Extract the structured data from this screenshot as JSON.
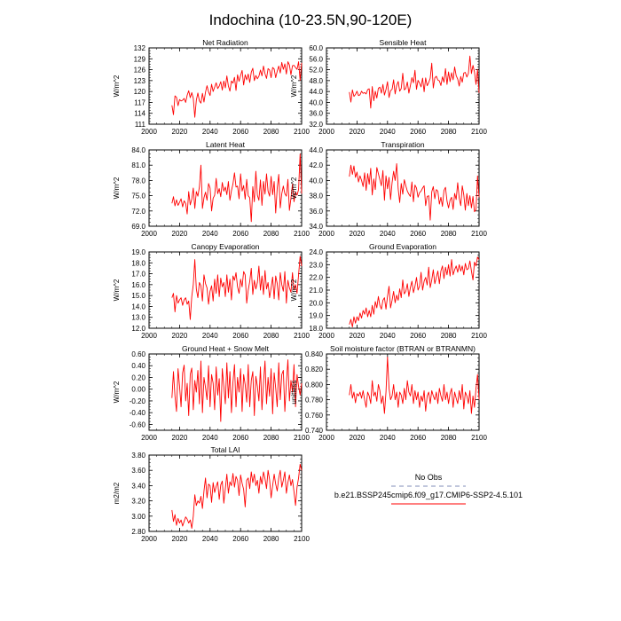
{
  "figure_title": "Indochina (10-23.5N,90-120E)",
  "legend": {
    "obs_label": "No Obs",
    "obs_color": "#9aa4c8",
    "model_label": "b.e21.BSSP245cmip6.f09_g17.CMIP6-SSP2-4.5.101",
    "model_color": "#ff0000"
  },
  "chart_data": [
    {
      "type": "line",
      "title": "Net Radiation",
      "ylabel": "W/m^2",
      "xlim": [
        2000,
        2100
      ],
      "ylim": [
        111,
        132
      ],
      "yticks": [
        "111",
        "114",
        "117",
        "120",
        "123",
        "126",
        "129",
        "132"
      ],
      "xticks": [
        "2000",
        "2020",
        "2040",
        "2060",
        "2080",
        "2100"
      ],
      "series": [
        {
          "name": "b.e21.BSSP245cmip6.f09_g17.CMIP6-SSP2-4.5.101",
          "start_year": 2015,
          "values": [
            116.2,
            113.6,
            118.8,
            118.4,
            116.1,
            117.8,
            117.4,
            117.6,
            118.1,
            117.0,
            119.0,
            120.2,
            118.3,
            119.7,
            118.1,
            112.9,
            117.6,
            119.6,
            117.4,
            116.8,
            119.5,
            117.1,
            119.8,
            121.6,
            119.9,
            118.9,
            122.0,
            120.0,
            121.2,
            122.4,
            120.8,
            121.5,
            122.7,
            120.4,
            122.9,
            121.0,
            124.3,
            121.5,
            120.1,
            122.9,
            122.3,
            123.9,
            120.3,
            124.6,
            122.8,
            124.4,
            125.8,
            121.8,
            124.6,
            123.2,
            124.8,
            122.5,
            125.3,
            126.4,
            123.0,
            124.4,
            123.5,
            124.2,
            125.9,
            124.3,
            127.0,
            124.9,
            123.6,
            126.3,
            125.9,
            123.8,
            126.6,
            126.2,
            123.8,
            125.6,
            127.0,
            125.1,
            128.0,
            126.1,
            127.6,
            124.8,
            128.2,
            127.3,
            124.6,
            127.1,
            127.2,
            126.6,
            126.1,
            128.2,
            123.1,
            127.9
          ]
        }
      ]
    },
    {
      "type": "line",
      "title": "Sensible Heat",
      "ylabel": "W/m^2",
      "xlim": [
        2000,
        2100
      ],
      "ylim": [
        32,
        60
      ],
      "yticks": [
        "32.0",
        "36.0",
        "40.0",
        "44.0",
        "48.0",
        "52.0",
        "56.0",
        "60.0"
      ],
      "xticks": [
        "2000",
        "2020",
        "2040",
        "2060",
        "2080",
        "2100"
      ],
      "series": [
        {
          "name": "b.e21.BSSP245cmip6.f09_g17.CMIP6-SSP2-4.5.101",
          "start_year": 2015,
          "values": [
            43.8,
            40.1,
            44.6,
            42.2,
            42.9,
            44.1,
            42.5,
            42.8,
            44.1,
            43.3,
            43.6,
            43.1,
            44.7,
            45.0,
            37.9,
            45.8,
            40.6,
            44.1,
            41.6,
            45.2,
            45.6,
            43.4,
            46.6,
            42.7,
            44.7,
            47.6,
            41.8,
            44.3,
            44.8,
            48.3,
            43.1,
            46.2,
            47.7,
            44.1,
            45.1,
            50.7,
            44.6,
            45.1,
            47.5,
            43.4,
            46.2,
            49.1,
            47.2,
            51.8,
            44.8,
            48.1,
            47.1,
            45.7,
            48.9,
            43.9,
            49.0,
            46.1,
            47.3,
            48.9,
            54.4,
            45.3,
            49.0,
            49.6,
            48.2,
            47.9,
            46.2,
            49.4,
            47.4,
            52.4,
            46.6,
            51.2,
            47.6,
            50.9,
            48.3,
            53.0,
            49.8,
            48.6,
            46.0,
            49.5,
            47.4,
            50.8,
            51.0,
            49.3,
            50.6,
            57.0,
            50.6,
            53.6,
            51.2,
            46.6,
            52.1,
            43.5
          ]
        }
      ]
    },
    {
      "type": "line",
      "title": "Latent Heat",
      "ylabel": "W/m^2",
      "xlim": [
        2000,
        2100
      ],
      "ylim": [
        69,
        84
      ],
      "yticks": [
        "69.0",
        "72.0",
        "75.0",
        "78.0",
        "81.0",
        "84.0"
      ],
      "xticks": [
        "2000",
        "2020",
        "2040",
        "2060",
        "2080",
        "2100"
      ],
      "series": [
        {
          "name": "b.e21.BSSP245cmip6.f09_g17.CMIP6-SSP2-4.5.101",
          "start_year": 2015,
          "values": [
            73.5,
            74.8,
            73.0,
            74.2,
            73.1,
            73.7,
            74.4,
            72.8,
            74.0,
            73.5,
            71.4,
            75.8,
            73.2,
            74.3,
            76.5,
            72.5,
            75.8,
            74.9,
            76.7,
            81.0,
            72.5,
            74.6,
            75.7,
            74.1,
            77.4,
            76.5,
            72.0,
            74.5,
            75.1,
            78.4,
            75.4,
            76.4,
            74.8,
            77.6,
            75.9,
            76.7,
            75.2,
            77.8,
            74.1,
            76.0,
            77.3,
            79.5,
            76.7,
            76.9,
            74.4,
            79.3,
            75.9,
            77.0,
            74.3,
            78.2,
            75.0,
            74.6,
            69.9,
            76.8,
            73.8,
            79.8,
            75.1,
            74.1,
            78.1,
            73.1,
            77.8,
            75.3,
            79.3,
            75.9,
            74.9,
            78.8,
            75.2,
            77.8,
            71.6,
            76.5,
            79.2,
            72.6,
            75.4,
            76.9,
            75.4,
            74.9,
            78.2,
            72.1,
            74.5,
            77.3,
            73.8,
            75.7,
            75.1,
            76.2,
            83.2,
            75.4
          ]
        }
      ]
    },
    {
      "type": "line",
      "title": "Transpiration",
      "ylabel": "W/m^2",
      "xlim": [
        2000,
        2100
      ],
      "ylim": [
        34,
        44
      ],
      "yticks": [
        "34.0",
        "36.0",
        "38.0",
        "40.0",
        "42.0",
        "44.0"
      ],
      "xticks": [
        "2000",
        "2020",
        "2040",
        "2060",
        "2080",
        "2100"
      ],
      "series": [
        {
          "name": "b.e21.BSSP245cmip6.f09_g17.CMIP6-SSP2-4.5.101",
          "start_year": 2015,
          "values": [
            40.5,
            42.0,
            40.8,
            41.9,
            40.4,
            41.1,
            39.8,
            40.6,
            40.0,
            39.2,
            41.0,
            38.7,
            40.9,
            39.5,
            41.6,
            38.1,
            40.2,
            38.8,
            41.7,
            40.9,
            40.1,
            39.3,
            41.3,
            37.4,
            40.6,
            38.9,
            40.4,
            37.5,
            39.7,
            41.2,
            40.0,
            42.2,
            38.9,
            37.1,
            39.6,
            38.2,
            40.1,
            39.3,
            38.6,
            38.2,
            37.9,
            39.8,
            37.2,
            39.4,
            39.0,
            37.8,
            38.4,
            38.6,
            39.0,
            39.3,
            36.7,
            37.9,
            38.0,
            34.8,
            38.5,
            39.2,
            37.6,
            38.8,
            38.6,
            36.9,
            37.8,
            36.6,
            38.7,
            39.1,
            37.3,
            36.4,
            37.4,
            37.8,
            36.2,
            38.3,
            37.5,
            39.7,
            37.7,
            36.7,
            39.3,
            38.1,
            36.1,
            38.3,
            36.7,
            38.0,
            36.4,
            37.9,
            35.9,
            36.2,
            40.6,
            37.8
          ]
        }
      ]
    },
    {
      "type": "line",
      "title": "Canopy Evaporation",
      "ylabel": "W/m^2",
      "xlim": [
        2000,
        2100
      ],
      "ylim": [
        12,
        19
      ],
      "yticks": [
        "12.0",
        "13.0",
        "14.0",
        "15.0",
        "16.0",
        "17.0",
        "18.0",
        "19.0"
      ],
      "xticks": [
        "2000",
        "2020",
        "2040",
        "2060",
        "2080",
        "2100"
      ],
      "series": [
        {
          "name": "b.e21.BSSP245cmip6.f09_g17.CMIP6-SSP2-4.5.101",
          "start_year": 2015,
          "values": [
            14.8,
            15.2,
            13.5,
            15.0,
            14.3,
            14.6,
            14.8,
            14.1,
            14.6,
            14.8,
            14.2,
            14.5,
            12.8,
            14.9,
            16.0,
            18.3,
            15.6,
            14.8,
            16.2,
            15.9,
            14.5,
            16.9,
            16.1,
            15.7,
            14.2,
            15.4,
            15.9,
            14.5,
            16.5,
            15.2,
            16.9,
            14.9,
            16.6,
            15.8,
            16.2,
            14.9,
            16.9,
            15.3,
            16.5,
            14.6,
            16.8,
            16.4,
            17.1,
            15.8,
            15.2,
            16.5,
            15.8,
            17.2,
            16.9,
            14.3,
            15.5,
            16.3,
            17.5,
            15.1,
            16.4,
            15.6,
            16.2,
            17.7,
            15.5,
            16.8,
            15.1,
            17.3,
            15.6,
            16.2,
            14.8,
            15.7,
            16.7,
            14.7,
            16.8,
            16.1,
            14.6,
            17.1,
            16.0,
            15.4,
            17.2,
            14.3,
            16.4,
            15.7,
            15.3,
            17.1,
            15.5,
            16.0,
            15.2,
            16.9,
            18.6,
            17.7
          ]
        }
      ]
    },
    {
      "type": "line",
      "title": "Ground Evaporation",
      "ylabel": "W/m^2",
      "xlim": [
        2000,
        2100
      ],
      "ylim": [
        18,
        24
      ],
      "yticks": [
        "18.0",
        "19.0",
        "20.0",
        "21.0",
        "22.0",
        "23.0",
        "24.0"
      ],
      "xticks": [
        "2000",
        "2020",
        "2040",
        "2060",
        "2080",
        "2100"
      ],
      "series": [
        {
          "name": "b.e21.BSSP245cmip6.f09_g17.CMIP6-SSP2-4.5.101",
          "start_year": 2015,
          "values": [
            18.3,
            18.7,
            18.1,
            18.9,
            18.4,
            18.9,
            18.6,
            19.2,
            18.8,
            19.4,
            19.1,
            19.6,
            18.9,
            19.4,
            18.9,
            19.8,
            19.1,
            20.1,
            19.6,
            20.5,
            19.8,
            19.5,
            20.2,
            20.4,
            19.5,
            20.5,
            21.3,
            19.6,
            20.2,
            20.9,
            20.0,
            20.6,
            20.2,
            21.1,
            20.4,
            21.8,
            20.7,
            20.9,
            21.5,
            20.5,
            21.2,
            21.7,
            20.8,
            21.3,
            22.0,
            21.0,
            21.3,
            22.4,
            21.0,
            21.7,
            22.0,
            21.4,
            22.8,
            21.2,
            21.8,
            22.6,
            21.5,
            22.0,
            22.5,
            21.5,
            22.5,
            22.9,
            21.9,
            22.8,
            22.2,
            23.0,
            22.1,
            23.4,
            22.2,
            22.6,
            22.9,
            22.4,
            23.0,
            22.5,
            22.9,
            22.2,
            23.1,
            22.6,
            22.7,
            23.3,
            22.5,
            21.8,
            23.2,
            22.9,
            23.6,
            23.4
          ]
        }
      ]
    },
    {
      "type": "line",
      "title": "Ground Heat + Snow Melt",
      "ylabel": "W/m^2",
      "xlim": [
        2000,
        2100
      ],
      "ylim": [
        -0.7,
        0.6
      ],
      "yticks": [
        "-0.60",
        "-0.40",
        "-0.20",
        "0.00",
        "0.20",
        "0.40",
        "0.60"
      ],
      "xticks": [
        "2000",
        "2020",
        "2040",
        "2060",
        "2080",
        "2100"
      ],
      "series": [
        {
          "name": "b.e21.BSSP245cmip6.f09_g17.CMIP6-SSP2-4.5.101",
          "start_year": 2015,
          "values": [
            -0.15,
            0.3,
            -0.12,
            -0.38,
            0.35,
            0.05,
            -0.3,
            0.28,
            0.41,
            -0.2,
            0.1,
            -0.45,
            0.25,
            0.36,
            -0.35,
            0.15,
            -0.05,
            0.32,
            -0.25,
            0.48,
            -0.4,
            0.2,
            0.03,
            -0.18,
            0.4,
            -0.3,
            0.25,
            0.1,
            -0.35,
            0.38,
            -0.1,
            0.18,
            -0.55,
            0.35,
            0.05,
            -0.25,
            0.45,
            -0.15,
            0.3,
            -0.4,
            0.12,
            0.42,
            -0.3,
            0.2,
            -0.05,
            0.35,
            -0.38,
            0.25,
            0.08,
            -0.22,
            0.42,
            -0.3,
            0.15,
            0.3,
            -0.45,
            0.22,
            0.05,
            -0.2,
            0.38,
            -0.35,
            0.1,
            0.48,
            -0.25,
            0.2,
            -0.12,
            0.35,
            -0.42,
            0.28,
            0.02,
            -0.3,
            0.45,
            -0.18,
            0.25,
            0.32,
            -0.38,
            0.1,
            0.5,
            -0.2,
            0.15,
            -0.05,
            0.42,
            -0.3,
            0.25,
            0.05,
            -0.1,
            0.1
          ]
        }
      ]
    },
    {
      "type": "line",
      "title": "Soil moisture factor (BTRAN or BTRANMN)",
      "ylabel": "unitless",
      "xlim": [
        2000,
        2100
      ],
      "ylim": [
        0.74,
        0.84
      ],
      "yticks": [
        "0.740",
        "0.760",
        "0.780",
        "0.800",
        "0.820",
        "0.840"
      ],
      "xticks": [
        "2000",
        "2020",
        "2040",
        "2060",
        "2080",
        "2100"
      ],
      "series": [
        {
          "name": "b.e21.BSSP245cmip6.f09_g17.CMIP6-SSP2-4.5.101",
          "start_year": 2015,
          "values": [
            0.786,
            0.8,
            0.782,
            0.79,
            0.776,
            0.788,
            0.785,
            0.79,
            0.782,
            0.792,
            0.78,
            0.77,
            0.79,
            0.785,
            0.775,
            0.805,
            0.785,
            0.79,
            0.778,
            0.8,
            0.792,
            0.775,
            0.785,
            0.762,
            0.79,
            0.836,
            0.795,
            0.78,
            0.785,
            0.8,
            0.78,
            0.79,
            0.77,
            0.79,
            0.786,
            0.775,
            0.795,
            0.78,
            0.805,
            0.79,
            0.785,
            0.8,
            0.775,
            0.792,
            0.78,
            0.79,
            0.77,
            0.785,
            0.778,
            0.792,
            0.765,
            0.785,
            0.79,
            0.775,
            0.792,
            0.785,
            0.78,
            0.79,
            0.775,
            0.795,
            0.785,
            0.778,
            0.8,
            0.78,
            0.79,
            0.775,
            0.788,
            0.795,
            0.77,
            0.79,
            0.782,
            0.775,
            0.792,
            0.78,
            0.8,
            0.768,
            0.79,
            0.785,
            0.775,
            0.792,
            0.762,
            0.785,
            0.77,
            0.795,
            0.813,
            0.78
          ]
        }
      ]
    },
    {
      "type": "line",
      "title": "Total LAI",
      "ylabel": "m2/m2",
      "xlim": [
        2000,
        2100
      ],
      "ylim": [
        2.8,
        3.8
      ],
      "yticks": [
        "2.80",
        "3.00",
        "3.20",
        "3.40",
        "3.60",
        "3.80"
      ],
      "xticks": [
        "2000",
        "2020",
        "2040",
        "2060",
        "2080",
        "2100"
      ],
      "series": [
        {
          "name": "b.e21.BSSP245cmip6.f09_g17.CMIP6-SSP2-4.5.101",
          "start_year": 2015,
          "values": [
            3.08,
            2.93,
            3.02,
            2.88,
            2.97,
            2.91,
            2.95,
            2.87,
            2.93,
            2.99,
            2.96,
            2.91,
            2.95,
            2.84,
            3.0,
            3.28,
            3.14,
            3.2,
            3.17,
            3.26,
            3.1,
            3.33,
            3.5,
            3.24,
            3.42,
            3.4,
            3.18,
            3.44,
            3.31,
            3.39,
            3.45,
            3.22,
            3.41,
            3.46,
            3.17,
            3.36,
            3.55,
            3.3,
            3.45,
            3.4,
            3.56,
            3.38,
            3.52,
            3.47,
            3.27,
            3.54,
            3.43,
            3.35,
            3.12,
            3.47,
            3.5,
            3.36,
            3.58,
            3.44,
            3.55,
            3.4,
            3.47,
            3.3,
            3.52,
            3.42,
            3.58,
            3.49,
            3.36,
            3.6,
            3.48,
            3.24,
            3.4,
            3.55,
            3.42,
            3.33,
            3.5,
            3.6,
            3.38,
            3.47,
            3.58,
            3.3,
            3.44,
            3.54,
            3.4,
            3.48,
            3.32,
            3.14,
            3.38,
            3.5,
            3.68,
            3.6
          ]
        }
      ]
    }
  ]
}
